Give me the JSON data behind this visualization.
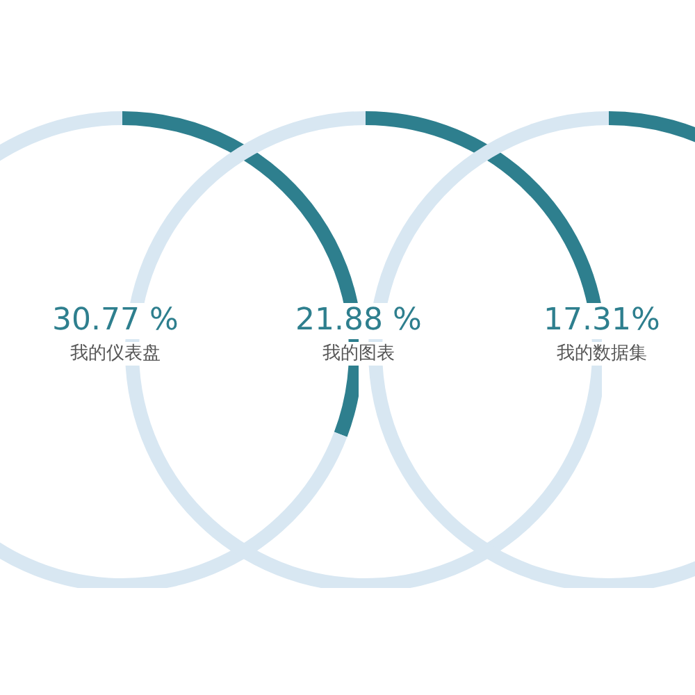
{
  "chart_data": [
    {
      "type": "donut",
      "title": "我的仪表盘",
      "values": [
        30.77,
        69.23
      ],
      "colors": [
        "#2e7f8e",
        "#d8e7f2"
      ],
      "annotations": [
        "30.77 %"
      ]
    },
    {
      "type": "donut",
      "title": "我的图表",
      "values": [
        21.88,
        78.12
      ],
      "colors": [
        "#2e7f8e",
        "#d8e7f2"
      ],
      "annotations": [
        "21.88 %"
      ]
    },
    {
      "type": "donut",
      "title": "我的数据集",
      "values": [
        17.31,
        82.69
      ],
      "colors": [
        "#2e7f8e",
        "#d8e7f2"
      ],
      "annotations": [
        "17.31%"
      ]
    }
  ]
}
